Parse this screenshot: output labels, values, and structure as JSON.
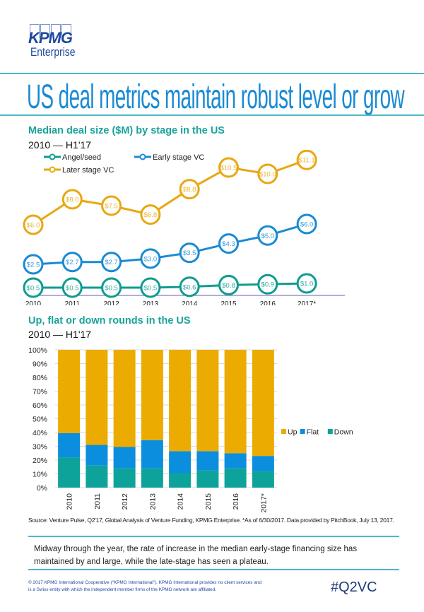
{
  "brand": {
    "name": "KPMG",
    "sub": "Enterprise",
    "color": "#1e49a0"
  },
  "headline": "US deal metrics maintain robust level or grow",
  "line_section": {
    "title": "Median deal size ($M) by stage in the US",
    "subtitle": "2010 — H1'17"
  },
  "bar_section": {
    "title": "Up, flat or down rounds in the US",
    "subtitle": "2010 — H1'17"
  },
  "chart_data": [
    {
      "type": "line",
      "title": "Median deal size ($M) by stage in the US",
      "subtitle": "2010 — H1'17",
      "categories": [
        "2010",
        "2011",
        "2012",
        "2013",
        "2014",
        "2015",
        "2016",
        "2017*"
      ],
      "legend": "top-left",
      "grid": false,
      "ylim": [
        0,
        12
      ],
      "series": [
        {
          "name": "Angel/seed",
          "color": "#0e9c90",
          "values": [
            0.5,
            0.5,
            0.5,
            0.5,
            0.6,
            0.8,
            0.9,
            1.0
          ],
          "labels": [
            "$0.5",
            "$0.5",
            "$0.5",
            "$0.5",
            "$0.6",
            "$0.8",
            "$0.9",
            "$1.0"
          ]
        },
        {
          "name": "Early stage VC",
          "color": "#1a8ad4",
          "values": [
            2.5,
            2.7,
            2.7,
            3.0,
            3.5,
            4.3,
            5.0,
            6.0
          ],
          "labels": [
            "$2.5",
            "$2.7",
            "$2.7",
            "$3.0",
            "$3.5",
            "$4.3",
            "$5.0",
            "$6.0"
          ]
        },
        {
          "name": "Later stage VC",
          "color": "#e8a812",
          "values": [
            6.0,
            8.0,
            7.5,
            6.8,
            8.8,
            10.5,
            10.0,
            11.1
          ],
          "labels": [
            "$6.0",
            "$8.0",
            "$7.5",
            "$6.8",
            "$8.8",
            "$10.5",
            "$10.0",
            "$11.1"
          ]
        }
      ]
    },
    {
      "type": "bar",
      "stacked": true,
      "title": "Up, flat or down rounds in the US",
      "subtitle": "2010 — H1'17",
      "categories": [
        "2010",
        "2011",
        "2012",
        "2013",
        "2014",
        "2015",
        "2016",
        "2017*"
      ],
      "ylim": [
        0,
        100
      ],
      "yticks": [
        "0%",
        "10%",
        "20%",
        "30%",
        "40%",
        "50%",
        "60%",
        "70%",
        "80%",
        "90%",
        "100%"
      ],
      "grid": true,
      "legend": "right",
      "series": [
        {
          "name": "Down",
          "color": "#0ea39a",
          "values": [
            22,
            16,
            14,
            14,
            10.5,
            12.5,
            14,
            12
          ]
        },
        {
          "name": "Flat",
          "color": "#0b8ede",
          "values": [
            17.5,
            15,
            15.5,
            20.5,
            16,
            14,
            11,
            11
          ]
        },
        {
          "name": "Up",
          "color": "#ecab00",
          "values": [
            60.5,
            69,
            70.5,
            65.5,
            73.5,
            73.5,
            75,
            77
          ]
        }
      ],
      "legend_order": [
        "Up",
        "Flat",
        "Down"
      ]
    }
  ],
  "source": "Source: Venture Pulse, Q2'17, Global Analysis of Venture Funding, KPMG Enterprise. *As of 6/30/2017. Data provided by PitchBook, July 13, 2017.",
  "note": "Midway through the year, the rate of increase in the median early-stage financing size has maintained by and large, while the late-stage has seen a plateau.",
  "copyright": "© 2017 KPMG International Cooperative (“KPMG International”). KPMG International provides no client services and is a Swiss entity with which the independent member firms of the KPMG network are affiliated.",
  "hashtag": "#Q2VC"
}
